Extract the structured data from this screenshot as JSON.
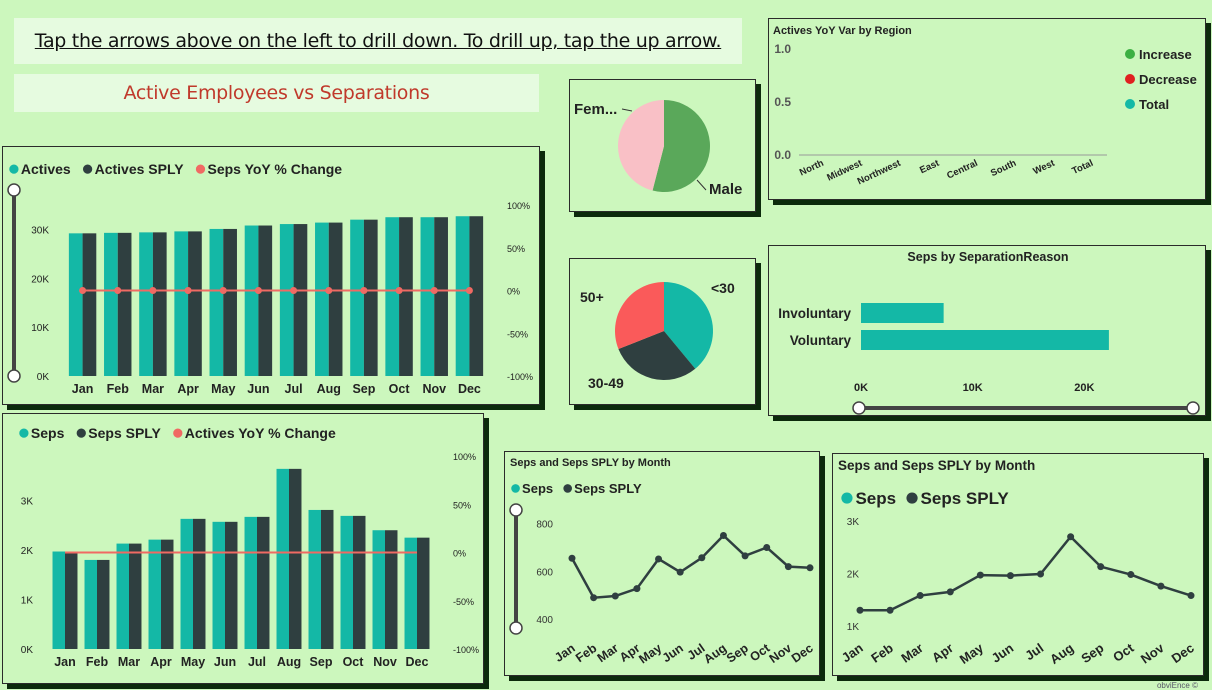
{
  "banners": {
    "instruction": "Tap the arrows above on the left to drill down. To drill up, tap the up arrow.",
    "title": "Active Employees vs Separations"
  },
  "colors": {
    "teal": "#14b8a6",
    "dark": "#2f3f40",
    "red": "#f06a63",
    "male": "#5aa85a",
    "female": "#f9c0c6",
    "age50": "#fa5a5a",
    "increase": "#3cb043",
    "decrease": "#e02020"
  },
  "icons": {
    "slider_handle": "circle-handle"
  },
  "chart_data": [
    {
      "id": "actives",
      "type": "bar",
      "legend": [
        "Actives",
        "Actives SPLY",
        "Seps YoY % Change"
      ],
      "categories": [
        "Jan",
        "Feb",
        "Mar",
        "Apr",
        "May",
        "Jun",
        "Jul",
        "Aug",
        "Sep",
        "Oct",
        "Nov",
        "Dec"
      ],
      "series": [
        {
          "name": "Actives",
          "values": [
            29200,
            29300,
            29400,
            29600,
            30100,
            30800,
            31100,
            31400,
            32000,
            32500,
            32500,
            32700
          ]
        },
        {
          "name": "Actives SPLY",
          "values": [
            29200,
            29300,
            29400,
            29600,
            30100,
            30800,
            31100,
            31400,
            32000,
            32500,
            32500,
            32700
          ]
        },
        {
          "name": "Seps YoY % Change",
          "axis": "right",
          "values": [
            0,
            0,
            0,
            0,
            0,
            0,
            0,
            0,
            0,
            0,
            0,
            0
          ]
        }
      ],
      "y_ticks": [
        "30K",
        "20K",
        "10K",
        "0K"
      ],
      "y_tick_values": [
        30000,
        20000,
        10000,
        0
      ],
      "ylim": [
        0,
        35000
      ],
      "y2_ticks": [
        "100%",
        "50%",
        "0%",
        "-50%",
        "-100%"
      ],
      "y2lim": [
        -100,
        100
      ]
    },
    {
      "id": "seps",
      "type": "bar",
      "legend": [
        "Seps",
        "Seps SPLY",
        "Actives YoY % Change"
      ],
      "categories": [
        "Jan",
        "Feb",
        "Mar",
        "Apr",
        "May",
        "Jun",
        "Jul",
        "Aug",
        "Sep",
        "Oct",
        "Nov",
        "Dec"
      ],
      "series": [
        {
          "name": "Seps",
          "values": [
            1970,
            1800,
            2130,
            2210,
            2630,
            2570,
            2670,
            3640,
            2810,
            2690,
            2400,
            2250
          ]
        },
        {
          "name": "Seps SPLY",
          "values": [
            1970,
            1800,
            2130,
            2210,
            2630,
            2570,
            2670,
            3640,
            2810,
            2690,
            2400,
            2250
          ]
        },
        {
          "name": "Actives YoY % Change",
          "axis": "right",
          "values": [
            0,
            0,
            0,
            0,
            0,
            0,
            0,
            0,
            0,
            0,
            0,
            0
          ]
        }
      ],
      "y_ticks": [
        "3K",
        "2K",
        "1K",
        "0K"
      ],
      "y_tick_values": [
        3000,
        2000,
        1000,
        0
      ],
      "ylim": [
        0,
        3900
      ],
      "y2_ticks": [
        "100%",
        "50%",
        "0%",
        "-50%",
        "-100%"
      ],
      "y2lim": [
        -100,
        100
      ]
    },
    {
      "id": "gender",
      "type": "pie",
      "categories": [
        "Fem...",
        "Male"
      ],
      "values": [
        46,
        54
      ]
    },
    {
      "id": "age",
      "type": "pie",
      "categories": [
        "<30",
        "30-49",
        "50+"
      ],
      "values": [
        39,
        30,
        31
      ]
    },
    {
      "id": "region",
      "type": "bar",
      "title": "Actives YoY Var by Region",
      "categories": [
        "North",
        "Midwest",
        "Northwest",
        "East",
        "Central",
        "South",
        "West",
        "Total"
      ],
      "values": [
        0,
        0,
        0,
        0,
        0,
        0,
        0,
        0
      ],
      "y_ticks": [
        "1.0",
        "0.5",
        "0.0"
      ],
      "ylim": [
        0,
        1
      ],
      "legend": [
        "Increase",
        "Decrease",
        "Total"
      ]
    },
    {
      "id": "reason",
      "type": "bar",
      "orientation": "horizontal",
      "title": "Seps by SeparationReason",
      "categories": [
        "Involuntary",
        "Voluntary"
      ],
      "values": [
        7400,
        22200
      ],
      "x_ticks": [
        "0K",
        "10K",
        "20K"
      ],
      "xlim": [
        0,
        24000
      ]
    },
    {
      "id": "line_small",
      "type": "line",
      "title": "Seps and Seps SPLY by Month",
      "legend": [
        "Seps",
        "Seps SPLY"
      ],
      "categories": [
        "Jan",
        "Feb",
        "Mar",
        "Apr",
        "May",
        "Jun",
        "Jul",
        "Aug",
        "Sep",
        "Oct",
        "Nov",
        "Dec"
      ],
      "values": [
        655,
        490,
        497,
        528,
        652,
        597,
        657,
        750,
        665,
        700,
        620,
        615
      ],
      "y_ticks": [
        "800",
        "600",
        "400"
      ],
      "ylim": [
        380,
        840
      ]
    },
    {
      "id": "line_big",
      "type": "line",
      "title": "Seps and Seps SPLY by Month",
      "legend": [
        "Seps",
        "Seps SPLY"
      ],
      "categories": [
        "Jan",
        "Feb",
        "Mar",
        "Apr",
        "May",
        "Jun",
        "Jul",
        "Aug",
        "Sep",
        "Oct",
        "Nov",
        "Dec"
      ],
      "values": [
        1300,
        1300,
        1580,
        1650,
        1970,
        1960,
        1990,
        2700,
        2130,
        1980,
        1760,
        1580
      ],
      "y_ticks": [
        "3K",
        "2K",
        "1K"
      ],
      "ylim": [
        1000,
        3000
      ]
    }
  ],
  "watermark": "obviEnce ©"
}
